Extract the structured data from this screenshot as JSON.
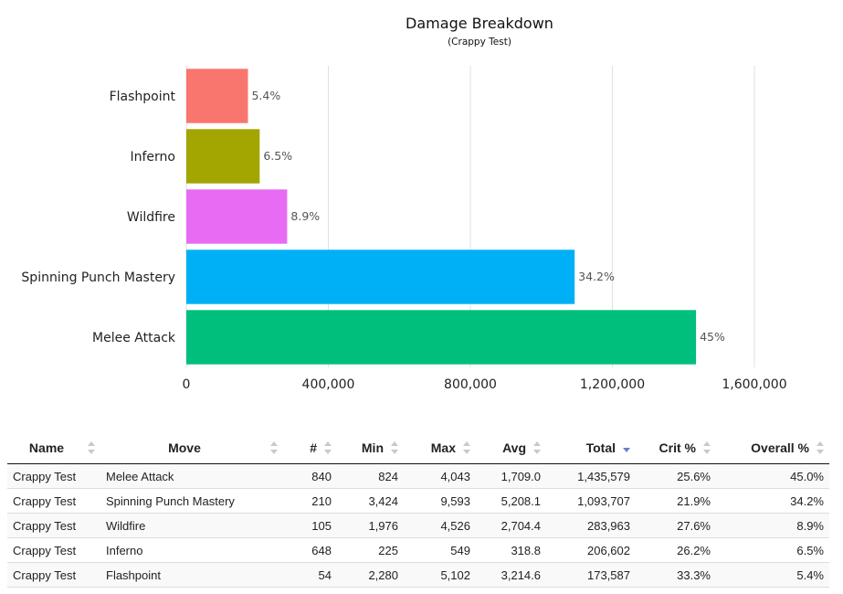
{
  "chart_data": {
    "type": "bar",
    "orientation": "horizontal",
    "title": "Damage Breakdown",
    "subtitle": "(Crappy Test)",
    "categories": [
      "Flashpoint",
      "Inferno",
      "Wildfire",
      "Spinning Punch Mastery",
      "Melee Attack"
    ],
    "values": [
      173587,
      206602,
      283963,
      1093707,
      1435579
    ],
    "data_labels": [
      "5.4%",
      "6.5%",
      "8.9%",
      "34.2%",
      "45%"
    ],
    "colors": [
      "#f8766d",
      "#a3a500",
      "#e76bf3",
      "#00b0f6",
      "#00bf7d"
    ],
    "xlim": [
      0,
      1600000
    ],
    "xticks": [
      0,
      400000,
      800000,
      1200000,
      1600000
    ],
    "xtick_labels": [
      "0",
      "400,000",
      "800,000",
      "1,200,000",
      "1,600,000"
    ],
    "grid": true,
    "xlabel": "",
    "ylabel": ""
  },
  "table": {
    "headers": [
      {
        "label": "Name",
        "align": "c",
        "sort": "none"
      },
      {
        "label": "Move",
        "align": "c",
        "sort": "none"
      },
      {
        "label": "#",
        "align": "r",
        "sort": "none"
      },
      {
        "label": "Min",
        "align": "r",
        "sort": "none"
      },
      {
        "label": "Max",
        "align": "r",
        "sort": "none"
      },
      {
        "label": "Avg",
        "align": "r",
        "sort": "none"
      },
      {
        "label": "Total",
        "align": "r",
        "sort": "desc"
      },
      {
        "label": "Crit %",
        "align": "r",
        "sort": "none"
      },
      {
        "label": "Overall %",
        "align": "r",
        "sort": "none"
      }
    ],
    "rows": [
      [
        "Crappy Test",
        "Melee Attack",
        "840",
        "824",
        "4,043",
        "1,709.0",
        "1,435,579",
        "25.6%",
        "45.0%"
      ],
      [
        "Crappy Test",
        "Spinning Punch Mastery",
        "210",
        "3,424",
        "9,593",
        "5,208.1",
        "1,093,707",
        "21.9%",
        "34.2%"
      ],
      [
        "Crappy Test",
        "Wildfire",
        "105",
        "1,976",
        "4,526",
        "2,704.4",
        "283,963",
        "27.6%",
        "8.9%"
      ],
      [
        "Crappy Test",
        "Inferno",
        "648",
        "225",
        "549",
        "318.8",
        "206,602",
        "26.2%",
        "6.5%"
      ],
      [
        "Crappy Test",
        "Flashpoint",
        "54",
        "2,280",
        "5,102",
        "3,214.6",
        "173,587",
        "33.3%",
        "5.4%"
      ]
    ]
  }
}
